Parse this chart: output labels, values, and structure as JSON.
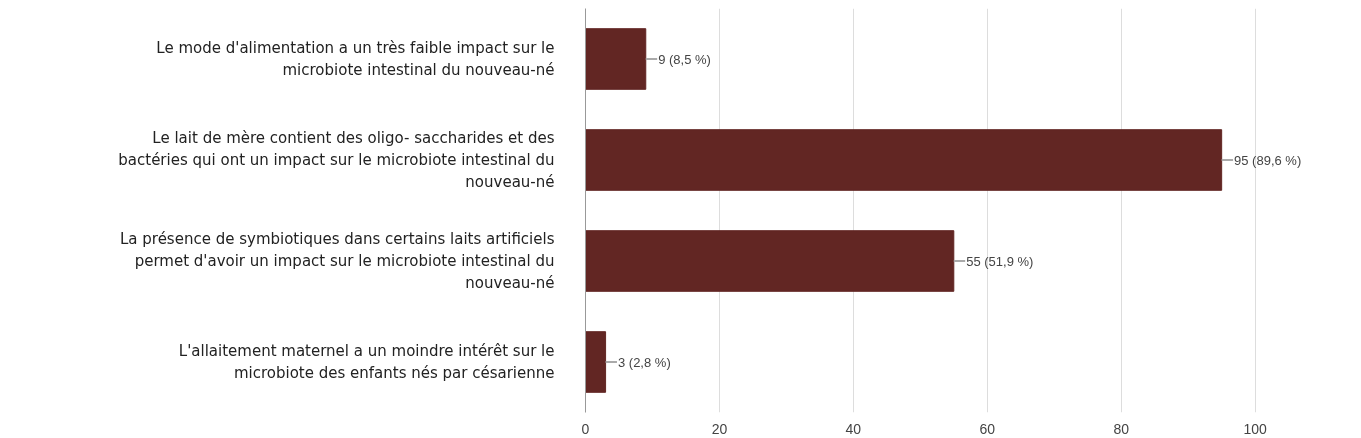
{
  "chart_data": {
    "type": "bar",
    "orientation": "horizontal",
    "categories": [
      "Le mode d'alimentation a un très faible impact sur le\nmicrobiote intestinal du nouveau-né",
      "Le lait de mère contient des oligo- saccharides et des\nbactéries qui ont un impact sur le microbiote intestinal du\nnouveau-né",
      "La présence de symbiotiques dans certains laits artificiels\npermet d'avoir un impact sur le microbiote intestinal du\nnouveau-né",
      "L'allaitement maternel a un moindre intérêt sur le\nmicrobiote des enfants nés par césarienne"
    ],
    "values": [
      9,
      95,
      55,
      3
    ],
    "value_labels": [
      "9 (8,5 %)",
      "95 (89,6 %)",
      "55 (51,9 %)",
      "3 (2,8 %)"
    ],
    "color": "#622623",
    "xlim": [
      0,
      100
    ],
    "xticks": [
      0,
      20,
      40,
      60,
      80,
      100
    ],
    "grid": "x"
  }
}
